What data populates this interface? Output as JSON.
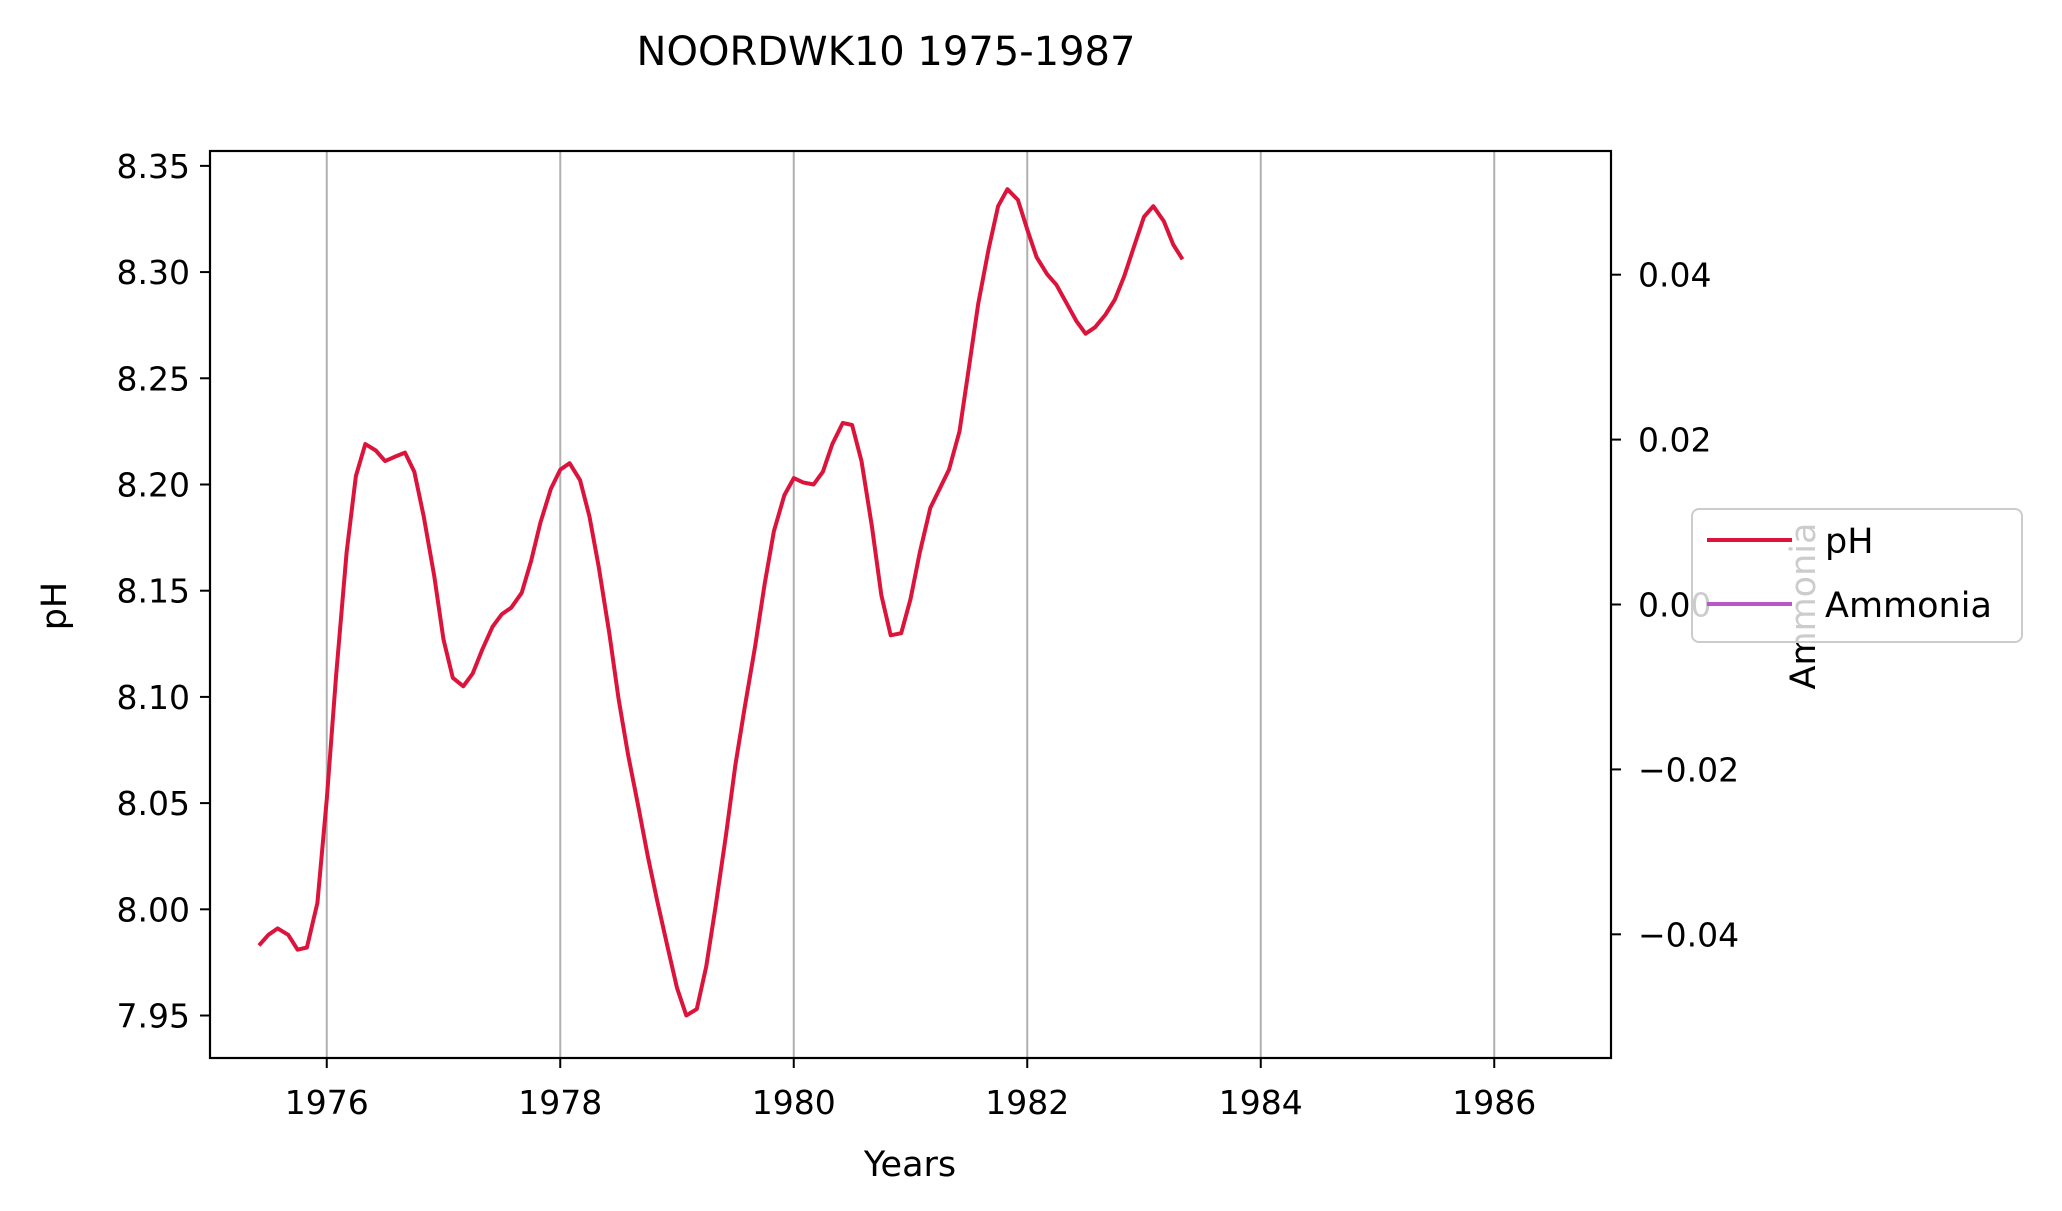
{
  "chart_data": {
    "type": "line",
    "title": "NOORDWK10 1975-1987",
    "xlabel": "Years",
    "ylabel": "pH",
    "y2label": "Ammonia",
    "xlim": [
      1975.0,
      1987.0
    ],
    "ylim": [
      7.93,
      8.357
    ],
    "y2lim": [
      -0.055,
      0.055
    ],
    "x_ticks": [
      1976,
      1978,
      1980,
      1982,
      1984,
      1986
    ],
    "x_tick_labels": [
      "1976",
      "1978",
      "1980",
      "1982",
      "1984",
      "1986"
    ],
    "y_ticks": [
      7.95,
      8.0,
      8.05,
      8.1,
      8.15,
      8.2,
      8.25,
      8.3,
      8.35
    ],
    "y_tick_labels": [
      "7.95",
      "8.00",
      "8.05",
      "8.10",
      "8.15",
      "8.20",
      "8.25",
      "8.30",
      "8.35"
    ],
    "y2_ticks": [
      -0.04,
      -0.02,
      0.0,
      0.02,
      0.04
    ],
    "y2_tick_labels": [
      "−0.04",
      "−0.02",
      "0.00",
      "0.02",
      "0.04"
    ],
    "grid": "vertical",
    "legend": "right",
    "series": [
      {
        "name": "pH",
        "color": "#dc143c",
        "axis": "left",
        "x": [
          1975.42,
          1975.5,
          1975.58,
          1975.67,
          1975.75,
          1975.83,
          1975.92,
          1976.0,
          1976.08,
          1976.17,
          1976.25,
          1976.33,
          1976.42,
          1976.5,
          1976.58,
          1976.67,
          1976.75,
          1976.83,
          1976.92,
          1977.0,
          1977.08,
          1977.17,
          1977.25,
          1977.33,
          1977.42,
          1977.5,
          1977.58,
          1977.67,
          1977.75,
          1977.83,
          1977.92,
          1978.0,
          1978.08,
          1978.17,
          1978.25,
          1978.33,
          1978.42,
          1978.5,
          1978.58,
          1978.67,
          1978.75,
          1978.83,
          1978.92,
          1979.0,
          1979.08,
          1979.17,
          1979.25,
          1979.33,
          1979.42,
          1979.5,
          1979.58,
          1979.67,
          1979.75,
          1979.83,
          1979.92,
          1980.0,
          1980.08,
          1980.17,
          1980.25,
          1980.33,
          1980.42,
          1980.5,
          1980.58,
          1980.67,
          1980.75,
          1980.83,
          1980.92,
          1981.0,
          1981.08,
          1981.17,
          1981.25,
          1981.33,
          1981.42,
          1981.5,
          1981.58,
          1981.67,
          1981.75,
          1981.83,
          1981.92,
          1982.0,
          1982.08,
          1982.17,
          1982.25,
          1982.33,
          1982.42,
          1982.5,
          1982.58,
          1982.67,
          1982.75,
          1982.83,
          1982.92,
          1983.0,
          1983.08,
          1983.17,
          1983.25,
          1983.33
        ],
        "values": [
          7.983,
          7.988,
          7.991,
          7.988,
          7.981,
          7.982,
          8.003,
          8.052,
          8.11,
          8.168,
          8.204,
          8.219,
          8.216,
          8.211,
          8.213,
          8.215,
          8.206,
          8.185,
          8.157,
          8.127,
          8.109,
          8.105,
          8.111,
          8.122,
          8.133,
          8.139,
          8.142,
          8.149,
          8.164,
          8.182,
          8.198,
          8.207,
          8.21,
          8.202,
          8.185,
          8.161,
          8.13,
          8.099,
          8.073,
          8.048,
          8.025,
          8.004,
          7.982,
          7.963,
          7.95,
          7.953,
          7.973,
          8.001,
          8.035,
          8.068,
          8.095,
          8.124,
          8.153,
          8.178,
          8.195,
          8.203,
          8.201,
          8.2,
          8.206,
          8.219,
          8.229,
          8.228,
          8.211,
          8.18,
          8.148,
          8.129,
          8.13,
          8.146,
          8.168,
          8.189,
          8.198,
          8.207,
          8.225,
          8.255,
          8.285,
          8.311,
          8.331,
          8.339,
          8.334,
          8.32,
          8.307,
          8.299,
          8.294,
          8.286,
          8.277,
          8.271,
          8.274,
          8.28,
          8.287,
          8.298,
          8.313,
          8.326,
          8.331,
          8.324,
          8.313,
          8.306
        ]
      },
      {
        "name": "Ammonia",
        "color": "#bb55cc",
        "axis": "right",
        "x": [],
        "values": []
      }
    ]
  }
}
